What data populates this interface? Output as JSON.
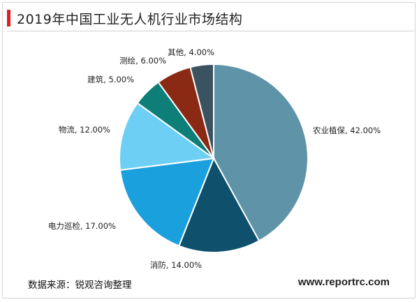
{
  "header": {
    "title": "2019年中国工业无人机行业市场结构"
  },
  "footer": {
    "source": "数据来源：锐观咨询整理",
    "website": "www.reportrc.com"
  },
  "colors": {
    "title_accent": "#e02020"
  },
  "chart_data": {
    "type": "pie",
    "title": "2019年中国工业无人机行业市场结构",
    "start": "12 o'clock, clockwise",
    "slices": [
      {
        "label": "农业植保",
        "value": 42.0,
        "display": "农业植保, 42.00%",
        "color": "#5f94a8"
      },
      {
        "label": "消防",
        "value": 14.0,
        "display": "消防, 14.00%",
        "color": "#0f506c"
      },
      {
        "label": "电力巡检",
        "value": 17.0,
        "display": "电力巡检, 17.00%",
        "color": "#1aa0dc"
      },
      {
        "label": "物流",
        "value": 12.0,
        "display": "物流, 12.00%",
        "color": "#6ecff5"
      },
      {
        "label": "建筑",
        "value": 5.0,
        "display": "建筑, 5.00%",
        "color": "#0e7e78"
      },
      {
        "label": "测绘",
        "value": 6.0,
        "display": "测绘, 6.00%",
        "color": "#8a2a14"
      },
      {
        "label": "其他",
        "value": 4.0,
        "display": "其他, 4.00%",
        "color": "#3b5360"
      }
    ]
  }
}
